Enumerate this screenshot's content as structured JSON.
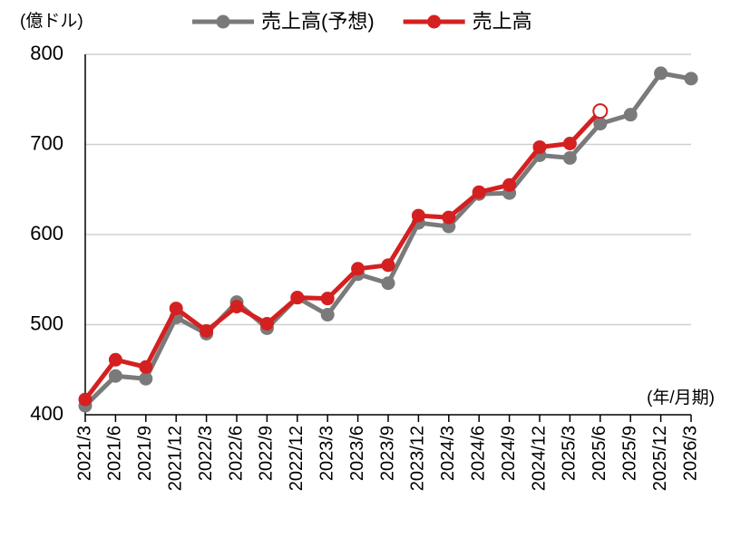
{
  "chart_data": {
    "type": "line",
    "y_label": "(億ドル)",
    "x_label": "(年/月期)",
    "categories": [
      "2021/3",
      "2021/6",
      "2021/9",
      "2021/12",
      "2022/3",
      "2022/6",
      "2022/9",
      "2022/12",
      "2023/3",
      "2023/6",
      "2023/9",
      "2023/12",
      "2024/3",
      "2024/6",
      "2024/9",
      "2024/12",
      "2025/3",
      "2025/6",
      "2025/9",
      "2025/12",
      "2026/3"
    ],
    "series": [
      {
        "name": "売上高(予想)",
        "color": "#7a7a7a",
        "values": [
          410,
          443,
          440,
          508,
          490,
          525,
          496,
          530,
          511,
          556,
          546,
          613,
          609,
          645,
          646,
          688,
          685,
          723,
          733,
          779,
          773
        ]
      },
      {
        "name": "売上高",
        "color": "#d42020",
        "hollow_last_point": true,
        "values": [
          417,
          461,
          453,
          518,
          493,
          520,
          501,
          530,
          529,
          562,
          566,
          621,
          619,
          647,
          655,
          697,
          701,
          737,
          null,
          null,
          null
        ]
      }
    ],
    "ylim": [
      400,
      800
    ],
    "yticks": [
      400,
      500,
      600,
      700,
      800
    ],
    "grid": true,
    "legend": "top"
  }
}
